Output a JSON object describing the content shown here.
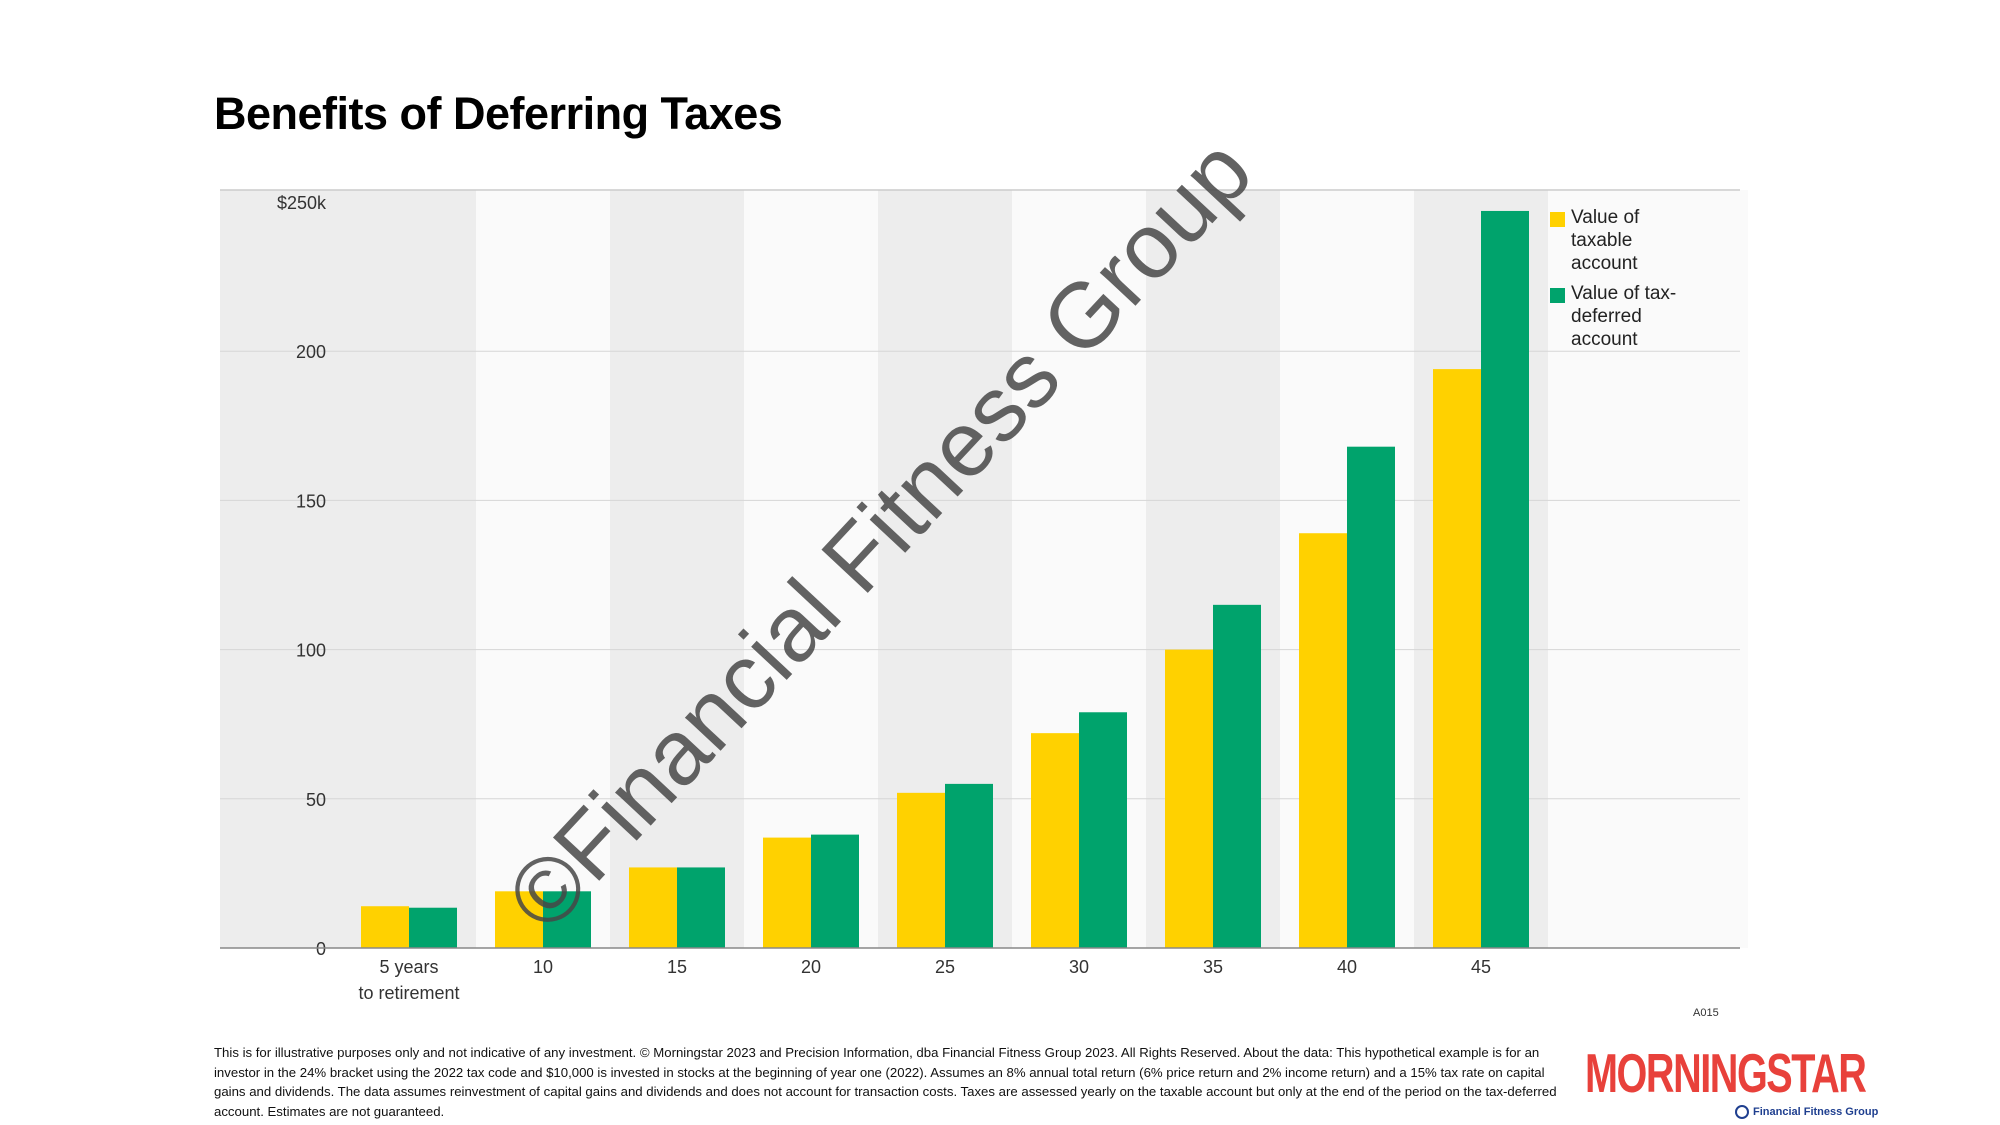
{
  "title": "Benefits of Deferring Taxes",
  "legend": [
    {
      "label": "Value of taxable account",
      "color": "#FFD100"
    },
    {
      "label": "Value of tax-deferred account",
      "color": "#00A36C"
    }
  ],
  "chart_data": {
    "type": "bar",
    "title": "Benefits of Deferring Taxes",
    "categories": [
      "5 years to retirement",
      "10",
      "15",
      "20",
      "25",
      "30",
      "35",
      "40",
      "45"
    ],
    "series": [
      {
        "name": "Value of taxable account",
        "color": "#FFD100",
        "values": [
          14,
          19,
          27,
          37,
          52,
          72,
          100,
          139,
          194
        ]
      },
      {
        "name": "Value of tax-deferred account",
        "color": "#00A36C",
        "values": [
          13.5,
          19,
          27,
          38,
          55,
          79,
          115,
          168,
          247
        ]
      }
    ],
    "yticks": [
      "0",
      "50",
      "100",
      "150",
      "200",
      "$250k"
    ],
    "ytick_values": [
      0,
      50,
      100,
      150,
      200,
      250
    ],
    "ylim": [
      0,
      250
    ],
    "grid": true,
    "legend_position": "right"
  },
  "code": "A015",
  "footnote": "This is for illustrative purposes only and not indicative of any investment. © Morningstar 2023 and Precision Information, dba Financial Fitness Group 2023. All Rights Reserved. About the data: This hypothetical example is for an investor in the 24% bracket using the 2022 tax code and $10,000 is invested in stocks at the beginning of year one (2022). Assumes an 8% annual total return (6% price return and 2% income return) and a 15% tax rate on capital gains and dividends. The data assumes reinvestment of capital gains and dividends and does not account for transaction costs. Taxes are assessed yearly on the taxable account but only at the end of the period on the tax-deferred account. Estimates are not guaranteed.",
  "logo": {
    "brand": "MORNINGSTAR",
    "sub": "Financial Fitness Group"
  },
  "watermark": "©Financial Fitness Group"
}
